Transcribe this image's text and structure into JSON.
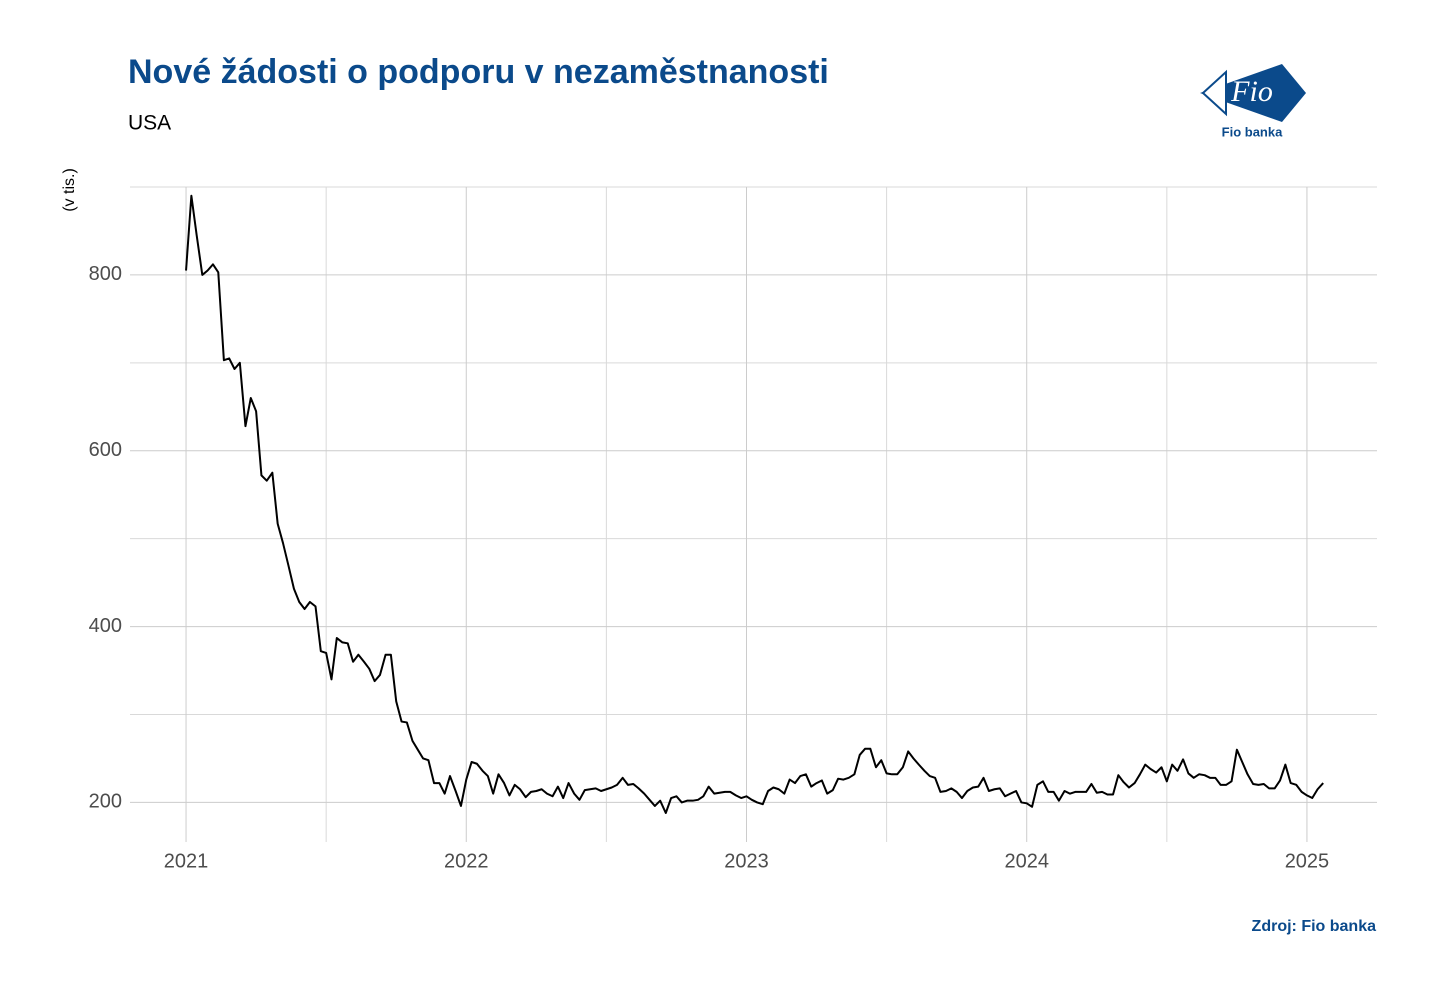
{
  "chart_data": {
    "type": "line",
    "title": "Nové žádosti o podporu v nezaměstnanosti",
    "subtitle": "USA",
    "y_label": "(v tis.)",
    "source": "Zdroj: Fio banka",
    "logo": {
      "mark": "Fio",
      "name": "Fio banka"
    },
    "color": "#000000",
    "grid": true,
    "xlim": [
      2020.8,
      2025.25
    ],
    "xticks": [
      2021,
      2022,
      2023,
      2024,
      2025
    ],
    "xminor": [
      2021.5,
      2022.5,
      2023.5,
      2024.5
    ],
    "ylim": [
      155,
      900
    ],
    "yticks": [
      200,
      400,
      600,
      800
    ],
    "yminor": [
      300,
      500,
      700,
      900
    ],
    "x": [
      2021.0,
      2021.019,
      2021.038,
      2021.058,
      2021.077,
      2021.096,
      2021.115,
      2021.135,
      2021.154,
      2021.173,
      2021.192,
      2021.212,
      2021.231,
      2021.25,
      2021.269,
      2021.288,
      2021.308,
      2021.327,
      2021.346,
      2021.365,
      2021.385,
      2021.404,
      2021.423,
      2021.442,
      2021.462,
      2021.481,
      2021.5,
      2021.519,
      2021.538,
      2021.558,
      2021.577,
      2021.596,
      2021.615,
      2021.635,
      2021.654,
      2021.673,
      2021.692,
      2021.712,
      2021.731,
      2021.75,
      2021.769,
      2021.788,
      2021.808,
      2021.827,
      2021.846,
      2021.865,
      2021.885,
      2021.904,
      2021.923,
      2021.942,
      2021.962,
      2021.981,
      2022.0,
      2022.019,
      2022.038,
      2022.058,
      2022.077,
      2022.096,
      2022.115,
      2022.135,
      2022.154,
      2022.173,
      2022.192,
      2022.212,
      2022.231,
      2022.25,
      2022.269,
      2022.288,
      2022.308,
      2022.327,
      2022.346,
      2022.365,
      2022.385,
      2022.404,
      2022.423,
      2022.442,
      2022.462,
      2022.481,
      2022.5,
      2022.519,
      2022.538,
      2022.558,
      2022.577,
      2022.596,
      2022.615,
      2022.635,
      2022.654,
      2022.673,
      2022.692,
      2022.712,
      2022.731,
      2022.75,
      2022.769,
      2022.788,
      2022.808,
      2022.827,
      2022.846,
      2022.865,
      2022.885,
      2022.904,
      2022.923,
      2022.942,
      2022.962,
      2022.981,
      2023.0,
      2023.019,
      2023.038,
      2023.058,
      2023.077,
      2023.096,
      2023.115,
      2023.135,
      2023.154,
      2023.173,
      2023.192,
      2023.212,
      2023.231,
      2023.25,
      2023.269,
      2023.288,
      2023.308,
      2023.327,
      2023.346,
      2023.365,
      2023.385,
      2023.404,
      2023.423,
      2023.442,
      2023.462,
      2023.481,
      2023.5,
      2023.519,
      2023.538,
      2023.558,
      2023.577,
      2023.596,
      2023.615,
      2023.635,
      2023.654,
      2023.673,
      2023.692,
      2023.712,
      2023.731,
      2023.75,
      2023.769,
      2023.788,
      2023.808,
      2023.827,
      2023.846,
      2023.865,
      2023.885,
      2023.904,
      2023.923,
      2023.942,
      2023.962,
      2023.981,
      2024.0,
      2024.019,
      2024.038,
      2024.058,
      2024.077,
      2024.096,
      2024.115,
      2024.135,
      2024.154,
      2024.173,
      2024.192,
      2024.212,
      2024.231,
      2024.25,
      2024.269,
      2024.288,
      2024.308,
      2024.327,
      2024.346,
      2024.365,
      2024.385,
      2024.404,
      2024.423,
      2024.442,
      2024.462,
      2024.481,
      2024.5,
      2024.519,
      2024.538,
      2024.558,
      2024.577,
      2024.596,
      2024.615,
      2024.635,
      2024.654,
      2024.673,
      2024.692,
      2024.712,
      2024.731,
      2024.75,
      2024.769,
      2024.788,
      2024.808,
      2024.827,
      2024.846,
      2024.865,
      2024.885,
      2024.904,
      2024.923,
      2024.942,
      2024.962,
      2024.981,
      2025.0,
      2025.019,
      2025.038,
      2025.058
    ],
    "values": [
      805,
      890,
      845,
      800,
      805,
      812,
      803,
      703,
      705,
      693,
      700,
      628,
      660,
      645,
      572,
      566,
      575,
      517,
      495,
      470,
      443,
      428,
      420,
      428,
      423,
      372,
      370,
      340,
      387,
      382,
      381,
      360,
      368,
      360,
      352,
      338,
      345,
      368,
      368,
      315,
      292,
      291,
      270,
      260,
      250,
      248,
      222,
      222,
      210,
      230,
      213,
      196,
      226,
      246,
      244,
      236,
      230,
      210,
      232,
      222,
      208,
      220,
      215,
      206,
      212,
      213,
      215,
      210,
      207,
      218,
      205,
      222,
      210,
      203,
      214,
      215,
      216,
      213,
      215,
      217,
      220,
      228,
      220,
      221,
      216,
      210,
      203,
      196,
      202,
      188,
      205,
      207,
      200,
      202,
      202,
      203,
      207,
      218,
      210,
      211,
      212,
      212,
      208,
      205,
      207,
      203,
      200,
      198,
      213,
      217,
      215,
      210,
      226,
      222,
      230,
      232,
      218,
      222,
      225,
      210,
      214,
      227,
      226,
      228,
      232,
      254,
      261,
      261,
      240,
      248,
      233,
      232,
      232,
      240,
      258,
      250,
      243,
      236,
      230,
      228,
      212,
      213,
      216,
      212,
      205,
      213,
      217,
      218,
      228,
      213,
      215,
      216,
      207,
      210,
      213,
      200,
      199,
      195,
      220,
      224,
      212,
      212,
      202,
      213,
      210,
      212,
      212,
      212,
      221,
      211,
      212,
      209,
      209,
      231,
      223,
      217,
      222,
      232,
      243,
      238,
      234,
      240,
      224,
      243,
      236,
      249,
      233,
      228,
      232,
      231,
      228,
      228,
      220,
      220,
      224,
      260,
      246,
      232,
      221,
      220,
      221,
      216,
      216,
      225,
      243,
      222,
      220,
      212,
      208,
      205,
      215,
      222
    ]
  }
}
